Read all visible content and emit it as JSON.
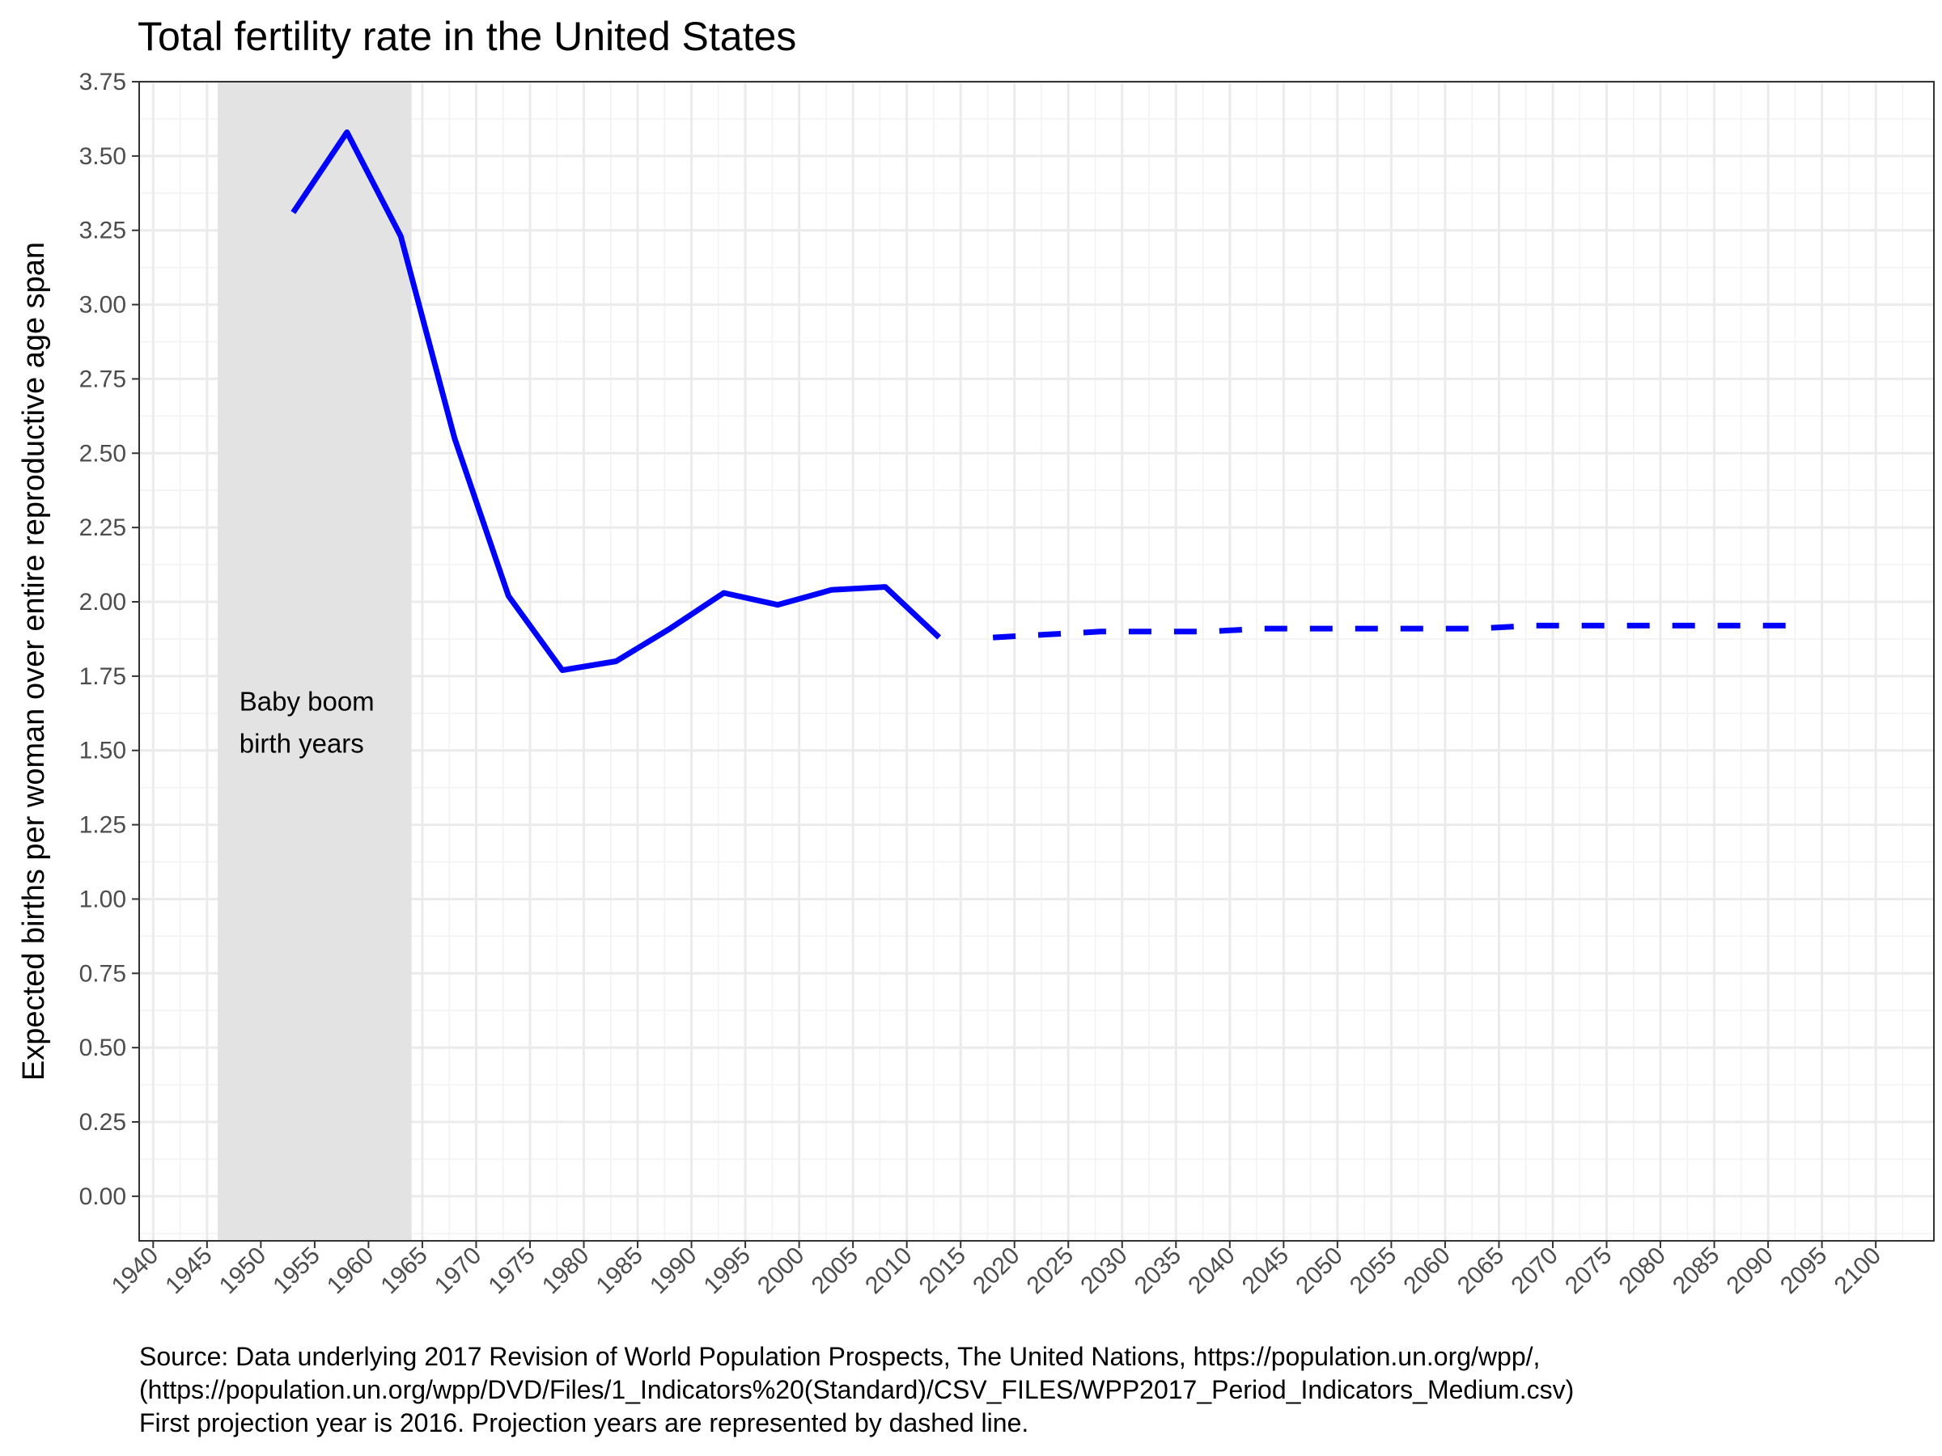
{
  "chart_data": {
    "type": "line",
    "title": "Total fertility rate in the United States",
    "ylabel": "Expected births per woman over entire reproductive age span",
    "xlabel": "",
    "xlim": [
      1938.7,
      2105.4
    ],
    "ylim": [
      -0.15,
      3.75
    ],
    "x_ticks": [
      1940,
      1945,
      1950,
      1955,
      1960,
      1965,
      1970,
      1975,
      1980,
      1985,
      1990,
      1995,
      2000,
      2005,
      2010,
      2015,
      2020,
      2025,
      2030,
      2035,
      2040,
      2045,
      2050,
      2055,
      2060,
      2065,
      2070,
      2075,
      2080,
      2085,
      2090,
      2095,
      2100
    ],
    "y_ticks": [
      "0.00",
      "0.25",
      "0.50",
      "0.75",
      "1.00",
      "1.25",
      "1.50",
      "1.75",
      "2.00",
      "2.25",
      "2.50",
      "2.75",
      "3.00",
      "3.25",
      "3.50",
      "3.75"
    ],
    "grid": true,
    "line_color": "#0000FF",
    "shade_color": "#E3E3E3",
    "shaded_region": {
      "x_start": 1946,
      "x_end": 1964
    },
    "annotation": {
      "lines": [
        "Baby boom",
        "birth years"
      ],
      "x": 1948,
      "y": 1.53
    },
    "series": [
      {
        "style": "solid",
        "points": [
          [
            1953,
            3.31
          ],
          [
            1958,
            3.58
          ],
          [
            1963,
            3.23
          ],
          [
            1968,
            2.55
          ],
          [
            1973,
            2.02
          ],
          [
            1978,
            1.77
          ],
          [
            1983,
            1.8
          ],
          [
            1988,
            1.91
          ],
          [
            1993,
            2.03
          ],
          [
            1998,
            1.99
          ],
          [
            2003,
            2.04
          ],
          [
            2008,
            2.05
          ],
          [
            2013,
            1.88
          ]
        ]
      },
      {
        "style": "dashed",
        "points": [
          [
            2018,
            1.88
          ],
          [
            2023,
            1.89
          ],
          [
            2028,
            1.9
          ],
          [
            2033,
            1.9
          ],
          [
            2038,
            1.9
          ],
          [
            2043,
            1.91
          ],
          [
            2048,
            1.91
          ],
          [
            2053,
            1.91
          ],
          [
            2058,
            1.91
          ],
          [
            2063,
            1.91
          ],
          [
            2068,
            1.92
          ],
          [
            2073,
            1.92
          ],
          [
            2078,
            1.92
          ],
          [
            2083,
            1.92
          ],
          [
            2088,
            1.92
          ],
          [
            2093,
            1.92
          ]
        ]
      }
    ]
  },
  "caption": [
    "Source: Data underlying 2017 Revision of World Population Prospects, The United Nations, https://population.un.org/wpp/,",
    "(https://population.un.org/wpp/DVD/Files/1_Indicators%20(Standard)/CSV_FILES/WPP2017_Period_Indicators_Medium.csv)",
    "First projection year is 2016. Projection years are represented by dashed line."
  ]
}
